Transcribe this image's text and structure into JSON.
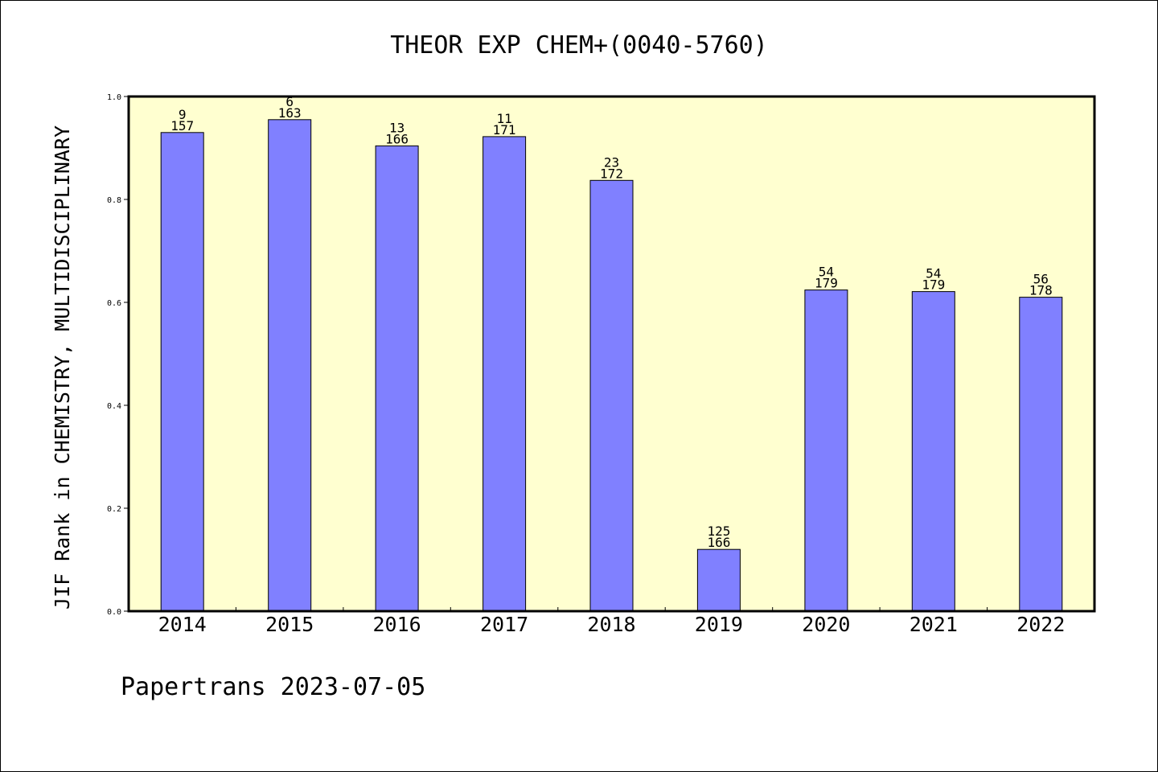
{
  "chart_data": {
    "type": "bar",
    "title": "THEOR EXP CHEM+(0040-5760)",
    "ylabel": "JIF Rank in CHEMISTRY, MULTIDISCIPLINARY",
    "xlabel": "",
    "ylim": [
      0,
      1.0
    ],
    "yticks": [
      "0.0",
      "0.2",
      "0.4",
      "0.6",
      "0.8",
      "1.0"
    ],
    "categories": [
      "2014",
      "2015",
      "2016",
      "2017",
      "2018",
      "2019",
      "2020",
      "2021",
      "2022"
    ],
    "values": [
      0.93,
      0.955,
      0.904,
      0.922,
      0.837,
      0.12,
      0.624,
      0.621,
      0.61
    ],
    "rank": [
      "9",
      "6",
      "13",
      "11",
      "23",
      "125",
      "54",
      "54",
      "56"
    ],
    "total": [
      "157",
      "163",
      "166",
      "171",
      "172",
      "166",
      "179",
      "179",
      "178"
    ],
    "grid": false,
    "legend": "none",
    "colors": {
      "bar_fill": "#8080ff",
      "bar_stroke": "#000000",
      "plot_background": "#ffffd0",
      "page_background": "#ffffff"
    }
  },
  "footer": "Papertrans 2023-07-05"
}
